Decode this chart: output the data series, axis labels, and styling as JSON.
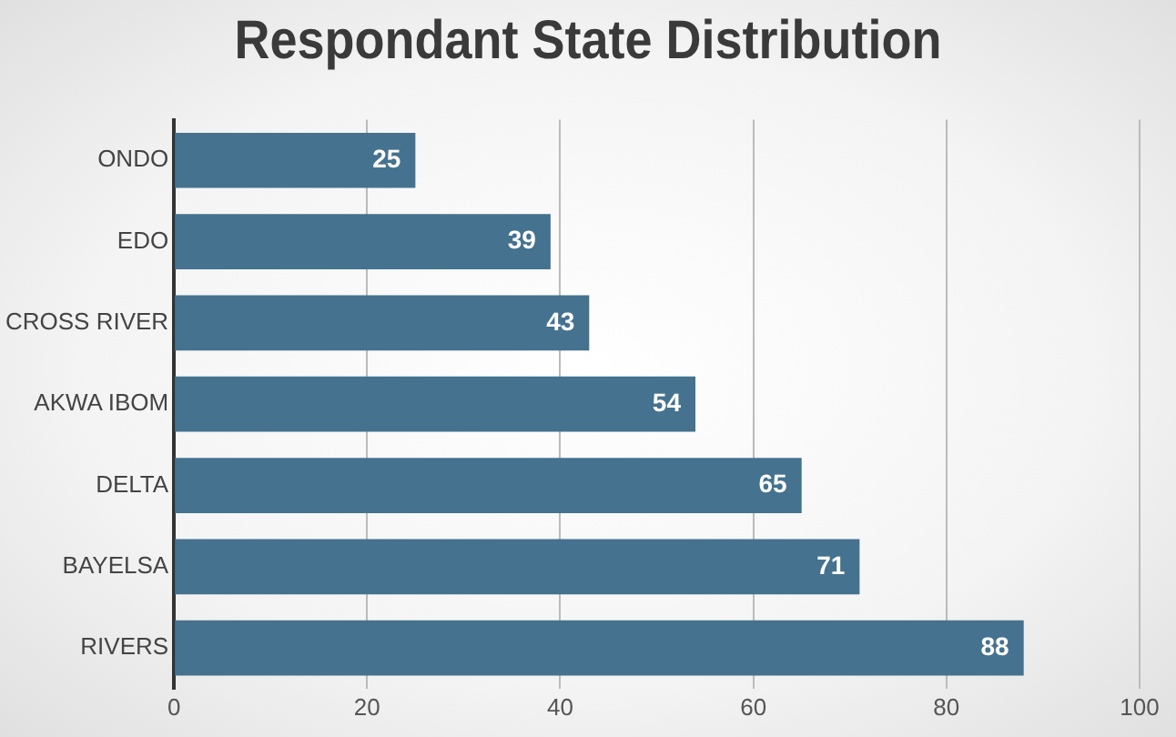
{
  "chart_data": {
    "type": "bar",
    "orientation": "horizontal",
    "title": "Respondant State Distribution",
    "categories": [
      "ONDO",
      "EDO",
      "CROSS RIVER",
      "AKWA IBOM",
      "DELTA",
      "BAYELSA",
      "RIVERS"
    ],
    "values": [
      25,
      39,
      43,
      54,
      65,
      71,
      88
    ],
    "color": "#44728f",
    "xlim": [
      0,
      100
    ],
    "xticks": [
      0,
      20,
      40,
      60,
      80,
      100
    ],
    "grid": "x",
    "data_labels": true,
    "legend": false
  }
}
